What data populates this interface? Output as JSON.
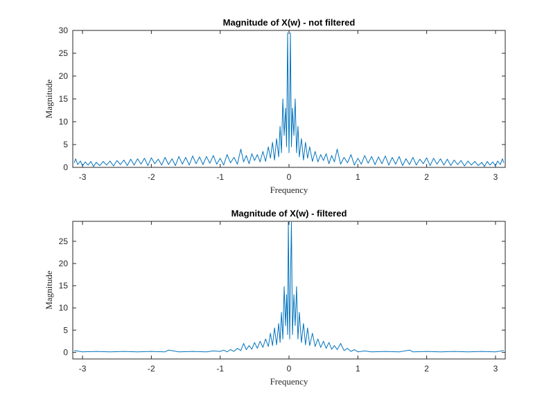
{
  "chart_data": [
    {
      "type": "line",
      "title": "Magnitude of X(w) - not filtered",
      "xlabel": "Frequency",
      "ylabel": "Magnitude",
      "xlim": [
        -3.1416,
        3.1416
      ],
      "ylim": [
        0,
        30
      ],
      "xticks": [
        -3,
        -2,
        -1,
        0,
        1,
        2,
        3
      ],
      "yticks": [
        0,
        5,
        10,
        15,
        20,
        25,
        30
      ],
      "grid": false,
      "color": "#0072BD",
      "series": [
        {
          "x": [
            -3.12,
            -3.1,
            -3.07,
            -3.03,
            -3.0,
            -2.96,
            -2.92,
            -2.88,
            -2.84,
            -2.8,
            -2.75,
            -2.7,
            -2.65,
            -2.6,
            -2.55,
            -2.5,
            -2.45,
            -2.4,
            -2.35,
            -2.3,
            -2.25,
            -2.2,
            -2.15,
            -2.1,
            -2.05,
            -2.0,
            -1.95,
            -1.9,
            -1.85,
            -1.8,
            -1.75,
            -1.7,
            -1.65,
            -1.6,
            -1.55,
            -1.5,
            -1.45,
            -1.4,
            -1.35,
            -1.3,
            -1.25,
            -1.2,
            -1.15,
            -1.1,
            -1.05,
            -1.0,
            -0.95,
            -0.9,
            -0.85,
            -0.8,
            -0.75,
            -0.7,
            -0.66,
            -0.62,
            -0.58,
            -0.54,
            -0.5,
            -0.46,
            -0.42,
            -0.38,
            -0.34,
            -0.3,
            -0.27,
            -0.24,
            -0.21,
            -0.18,
            -0.15,
            -0.13,
            -0.11,
            -0.09,
            -0.07,
            -0.05,
            -0.035,
            -0.02,
            -0.01,
            0.0,
            0.01,
            0.02,
            0.035,
            0.05,
            0.07,
            0.09,
            0.11,
            0.13,
            0.15,
            0.18,
            0.21,
            0.24,
            0.27,
            0.3,
            0.34,
            0.38,
            0.42,
            0.46,
            0.5,
            0.54,
            0.58,
            0.62,
            0.66,
            0.7,
            0.75,
            0.8,
            0.85,
            0.9,
            0.95,
            1.0,
            1.05,
            1.1,
            1.15,
            1.2,
            1.25,
            1.3,
            1.35,
            1.4,
            1.45,
            1.5,
            1.55,
            1.6,
            1.65,
            1.7,
            1.75,
            1.8,
            1.85,
            1.9,
            1.95,
            2.0,
            2.05,
            2.1,
            2.15,
            2.2,
            2.25,
            2.3,
            2.35,
            2.4,
            2.45,
            2.5,
            2.55,
            2.6,
            2.65,
            2.7,
            2.75,
            2.8,
            2.84,
            2.88,
            2.92,
            2.96,
            3.0,
            3.03,
            3.07,
            3.1,
            3.12
          ],
          "y": [
            1.0,
            1.9,
            0.6,
            1.4,
            0.3,
            1.2,
            0.5,
            1.3,
            0.2,
            1.1,
            0.4,
            1.3,
            0.5,
            1.4,
            0.3,
            1.5,
            0.6,
            1.6,
            0.4,
            1.8,
            0.5,
            1.9,
            0.7,
            2.0,
            0.4,
            2.1,
            0.8,
            1.8,
            0.5,
            2.2,
            0.6,
            1.9,
            0.4,
            2.4,
            0.7,
            2.2,
            0.5,
            2.5,
            0.8,
            2.3,
            0.6,
            2.4,
            0.9,
            2.6,
            0.7,
            2.0,
            0.5,
            2.8,
            1.0,
            2.2,
            0.7,
            4.0,
            1.2,
            2.6,
            0.8,
            3.0,
            1.5,
            2.8,
            1.2,
            3.5,
            1.3,
            4.5,
            2.0,
            5.5,
            1.6,
            6.3,
            2.3,
            9.0,
            3.2,
            15.0,
            7.0,
            13.0,
            4.5,
            29.5,
            15.0,
            3.2,
            15.0,
            29.5,
            4.5,
            13.0,
            7.0,
            15.0,
            3.2,
            9.0,
            2.3,
            6.3,
            1.6,
            5.5,
            2.0,
            4.5,
            1.3,
            3.5,
            1.2,
            2.8,
            1.5,
            3.0,
            0.8,
            2.6,
            1.2,
            4.0,
            0.7,
            2.2,
            1.0,
            2.8,
            0.5,
            2.0,
            0.7,
            2.6,
            0.9,
            2.4,
            0.6,
            2.3,
            0.8,
            2.5,
            0.5,
            2.2,
            0.7,
            2.4,
            0.4,
            1.9,
            0.6,
            2.2,
            0.5,
            1.8,
            0.8,
            2.1,
            0.4,
            2.0,
            0.7,
            1.9,
            0.5,
            1.8,
            0.4,
            1.6,
            0.6,
            1.5,
            0.3,
            1.4,
            0.5,
            1.3,
            0.4,
            1.1,
            0.2,
            1.3,
            0.5,
            1.2,
            0.3,
            1.4,
            0.6,
            1.9,
            1.0
          ]
        }
      ]
    },
    {
      "type": "line",
      "title": "Magnitude of X(w) - filtered",
      "xlabel": "Frequency",
      "ylabel": "Magnitude",
      "xlim": [
        -3.1416,
        3.1416
      ],
      "ylim": [
        -1.5,
        29.5
      ],
      "xticks": [
        -3,
        -2,
        -1,
        0,
        1,
        2,
        3
      ],
      "yticks": [
        0,
        5,
        10,
        15,
        20,
        25
      ],
      "grid": false,
      "color": "#0072BD",
      "series": [
        {
          "x": [
            -3.12,
            -3.0,
            -2.8,
            -2.6,
            -2.4,
            -2.2,
            -2.0,
            -1.8,
            -1.75,
            -1.6,
            -1.4,
            -1.2,
            -1.1,
            -1.0,
            -0.95,
            -0.9,
            -0.85,
            -0.8,
            -0.75,
            -0.7,
            -0.66,
            -0.62,
            -0.58,
            -0.54,
            -0.5,
            -0.46,
            -0.42,
            -0.38,
            -0.34,
            -0.3,
            -0.27,
            -0.24,
            -0.21,
            -0.18,
            -0.15,
            -0.13,
            -0.11,
            -0.09,
            -0.07,
            -0.05,
            -0.035,
            -0.02,
            -0.01,
            0.0,
            0.01,
            0.02,
            0.035,
            0.05,
            0.07,
            0.09,
            0.11,
            0.13,
            0.15,
            0.18,
            0.21,
            0.24,
            0.27,
            0.3,
            0.34,
            0.38,
            0.42,
            0.46,
            0.5,
            0.54,
            0.58,
            0.62,
            0.66,
            0.7,
            0.75,
            0.8,
            0.85,
            0.9,
            0.95,
            1.0,
            1.1,
            1.2,
            1.4,
            1.6,
            1.75,
            1.8,
            2.0,
            2.2,
            2.4,
            2.6,
            2.8,
            3.0,
            3.12
          ],
          "y": [
            0.4,
            0.1,
            0.2,
            0.1,
            0.2,
            0.1,
            0.2,
            0.1,
            0.5,
            0.1,
            0.2,
            0.1,
            0.3,
            0.2,
            0.5,
            0.1,
            0.6,
            0.2,
            0.9,
            0.4,
            2.0,
            0.6,
            1.5,
            0.7,
            2.2,
            0.9,
            2.5,
            1.1,
            3.0,
            1.3,
            4.3,
            1.5,
            5.5,
            1.7,
            6.5,
            2.2,
            9.0,
            3.0,
            14.8,
            6.0,
            13.0,
            4.0,
            29.3,
            15.0,
            3.0,
            15.0,
            29.3,
            4.0,
            13.0,
            6.0,
            14.8,
            3.0,
            9.0,
            2.2,
            6.5,
            1.7,
            5.5,
            1.5,
            4.3,
            1.3,
            3.0,
            1.1,
            2.5,
            0.9,
            2.2,
            0.7,
            1.5,
            0.6,
            2.0,
            0.4,
            0.9,
            0.2,
            0.6,
            0.1,
            0.3,
            0.1,
            0.2,
            0.1,
            0.5,
            0.1,
            0.2,
            0.1,
            0.2,
            0.1,
            0.2,
            0.1,
            0.4
          ]
        }
      ]
    }
  ]
}
